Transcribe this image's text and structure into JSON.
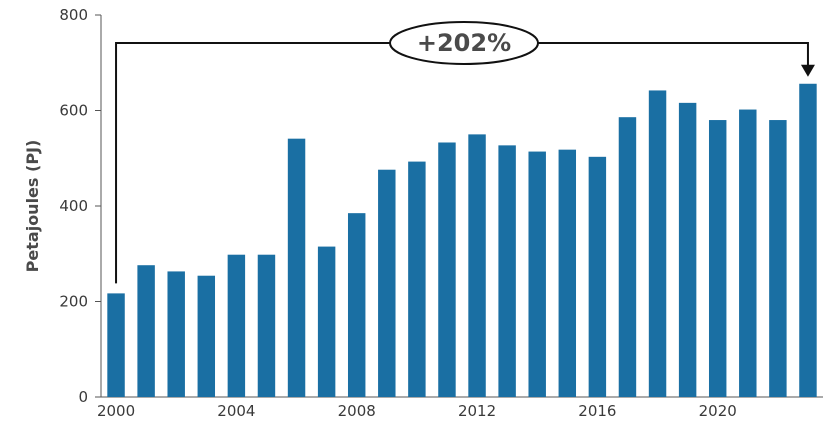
{
  "chart_data": {
    "type": "bar",
    "title": "",
    "xlabel": "",
    "ylabel": "Petajoules (PJ)",
    "ylim": [
      0,
      800
    ],
    "yticks": [
      0,
      200,
      400,
      600,
      800
    ],
    "xtick_labels": [
      "2000",
      "2004",
      "2008",
      "2012",
      "2016",
      "2020"
    ],
    "categories": [
      "2000",
      "2001",
      "2002",
      "2003",
      "2004",
      "2005",
      "2006",
      "2007",
      "2008",
      "2009",
      "2010",
      "2011",
      "2012",
      "2013",
      "2014",
      "2015",
      "2016",
      "2017",
      "2018",
      "2019",
      "2020",
      "2021",
      "2022",
      "2023"
    ],
    "values": [
      217,
      276,
      263,
      254,
      298,
      298,
      541,
      315,
      385,
      476,
      493,
      533,
      550,
      527,
      514,
      518,
      503,
      586,
      642,
      616,
      580,
      602,
      580,
      656
    ],
    "bar_color": "#1a6fa3",
    "grid": false,
    "annotation": {
      "text": "+202%",
      "from": "2000",
      "to": "2023"
    }
  }
}
